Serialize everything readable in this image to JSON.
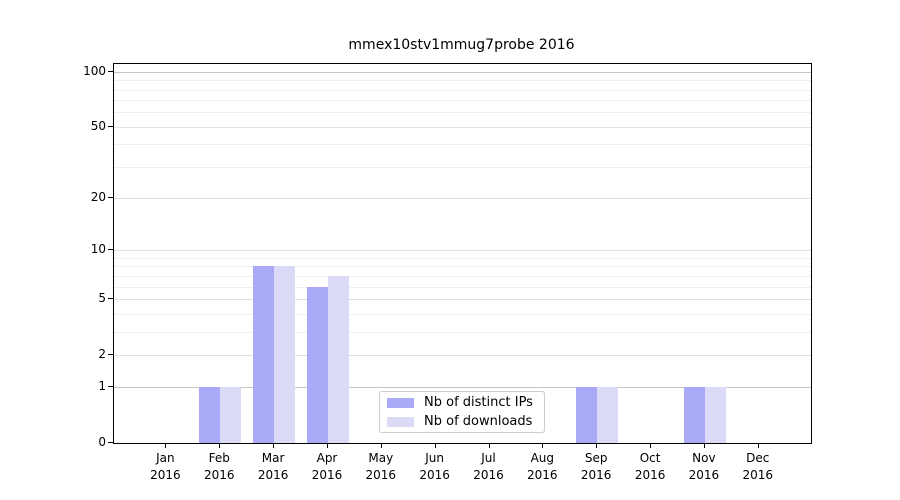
{
  "title": "mmex10stv1mmug7probe 2016",
  "colors": {
    "series1": "#a9a9f5",
    "series2": "#dbdbf8",
    "spine": "#000000",
    "grid_minor": "#efefef",
    "grid_major": "#e2e2e2",
    "grid_strong": "#c6c6c6",
    "legend_border": "#cccccc",
    "background": "#ffffff"
  },
  "legend": {
    "entries": [
      {
        "label": "Nb of distinct IPs"
      },
      {
        "label": "Nb of downloads"
      }
    ]
  },
  "chart_data": {
    "type": "bar",
    "title": "mmex10stv1mmug7probe 2016",
    "xlabel": "",
    "ylabel": "",
    "year": "2016",
    "categories": [
      "Jan",
      "Feb",
      "Mar",
      "Apr",
      "May",
      "Jun",
      "Jul",
      "Aug",
      "Sep",
      "Oct",
      "Nov",
      "Dec"
    ],
    "series": [
      {
        "name": "Nb of distinct IPs",
        "color": "#a9a9f5",
        "values": [
          0,
          1,
          8,
          6,
          0,
          0,
          0,
          0,
          1,
          0,
          1,
          0
        ]
      },
      {
        "name": "Nb of downloads",
        "color": "#dbdbf8",
        "values": [
          0,
          1,
          8,
          7,
          0,
          0,
          0,
          0,
          1,
          0,
          1,
          0
        ]
      }
    ],
    "y_scale": "log(1+x)",
    "y_ticks": [
      0,
      1,
      2,
      5,
      10,
      20,
      50,
      100
    ],
    "minor_gridline_values": [
      3,
      4,
      6,
      7,
      8,
      9,
      30,
      40,
      60,
      70,
      80,
      90
    ],
    "strong_gridline_values": [
      1,
      100
    ],
    "ylim": [
      0,
      110
    ],
    "grid": true,
    "legend_position": "lower center"
  }
}
